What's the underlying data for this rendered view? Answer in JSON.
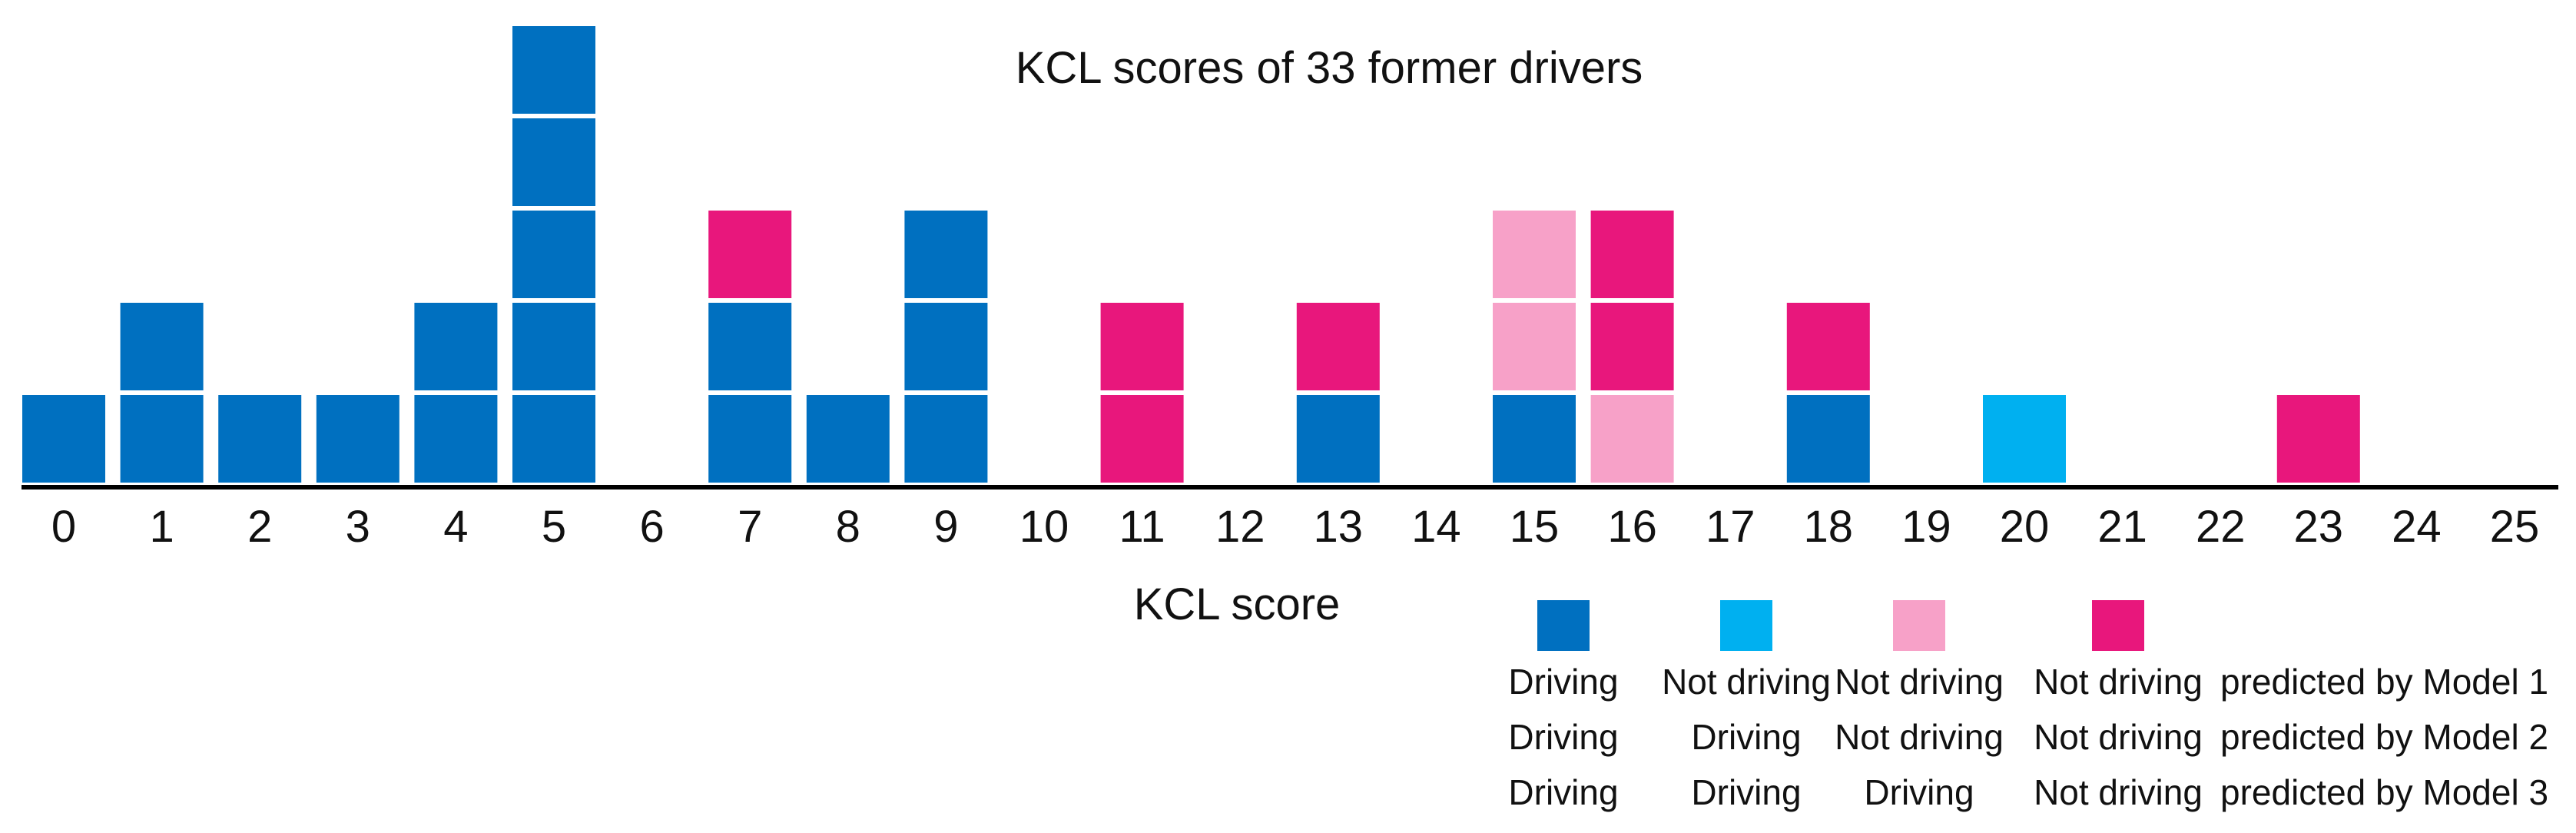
{
  "chart_data": {
    "type": "bar",
    "title": "KCL scores of 33 former drivers",
    "xlabel": "KCL score",
    "ylabel": "",
    "categories": [
      "0",
      "1",
      "2",
      "3",
      "4",
      "5",
      "6",
      "7",
      "8",
      "9",
      "10",
      "11",
      "12",
      "13",
      "14",
      "15",
      "16",
      "17",
      "18",
      "19",
      "20",
      "21",
      "22",
      "23",
      "24",
      "25"
    ],
    "stack_unit": "1 former driver",
    "stacks": [
      [
        "driving_all"
      ],
      [
        "driving_all",
        "driving_all"
      ],
      [
        "driving_all"
      ],
      [
        "driving_all"
      ],
      [
        "driving_all",
        "driving_all"
      ],
      [
        "driving_all",
        "driving_all",
        "driving_all",
        "driving_all",
        "driving_all"
      ],
      [],
      [
        "driving_all",
        "driving_all",
        "notdriving_all"
      ],
      [
        "driving_all"
      ],
      [
        "driving_all",
        "driving_all",
        "driving_all"
      ],
      [],
      [
        "notdriving_all",
        "notdriving_all"
      ],
      [],
      [
        "driving_all",
        "notdriving_all"
      ],
      [],
      [
        "driving_all",
        "notdriving_m1m2",
        "notdriving_m1m2"
      ],
      [
        "notdriving_m1m2",
        "notdriving_all",
        "notdriving_all"
      ],
      [],
      [
        "driving_all",
        "notdriving_all"
      ],
      [],
      [
        "notdriving_m1"
      ],
      [],
      [],
      [
        "notdriving_all"
      ],
      [],
      []
    ],
    "legend": {
      "position": "bottom-right",
      "entries": [
        {
          "key": "driving_all",
          "color": "#0070C0",
          "rows": [
            "Driving",
            "Driving",
            "Driving"
          ]
        },
        {
          "key": "notdriving_m1",
          "color": "#00B0F0",
          "rows": [
            "Not driving",
            "Driving",
            "Driving"
          ]
        },
        {
          "key": "notdriving_m1m2",
          "color": "#F7A1C8",
          "rows": [
            "Not driving",
            "Not driving",
            "Driving"
          ]
        },
        {
          "key": "notdriving_all",
          "color": "#E8177C",
          "rows": [
            "Not driving",
            "Not driving",
            "Not driving"
          ]
        }
      ],
      "row_labels": [
        "predicted by Model 1",
        "predicted by Model 2",
        "predicted by Model 3"
      ]
    }
  }
}
